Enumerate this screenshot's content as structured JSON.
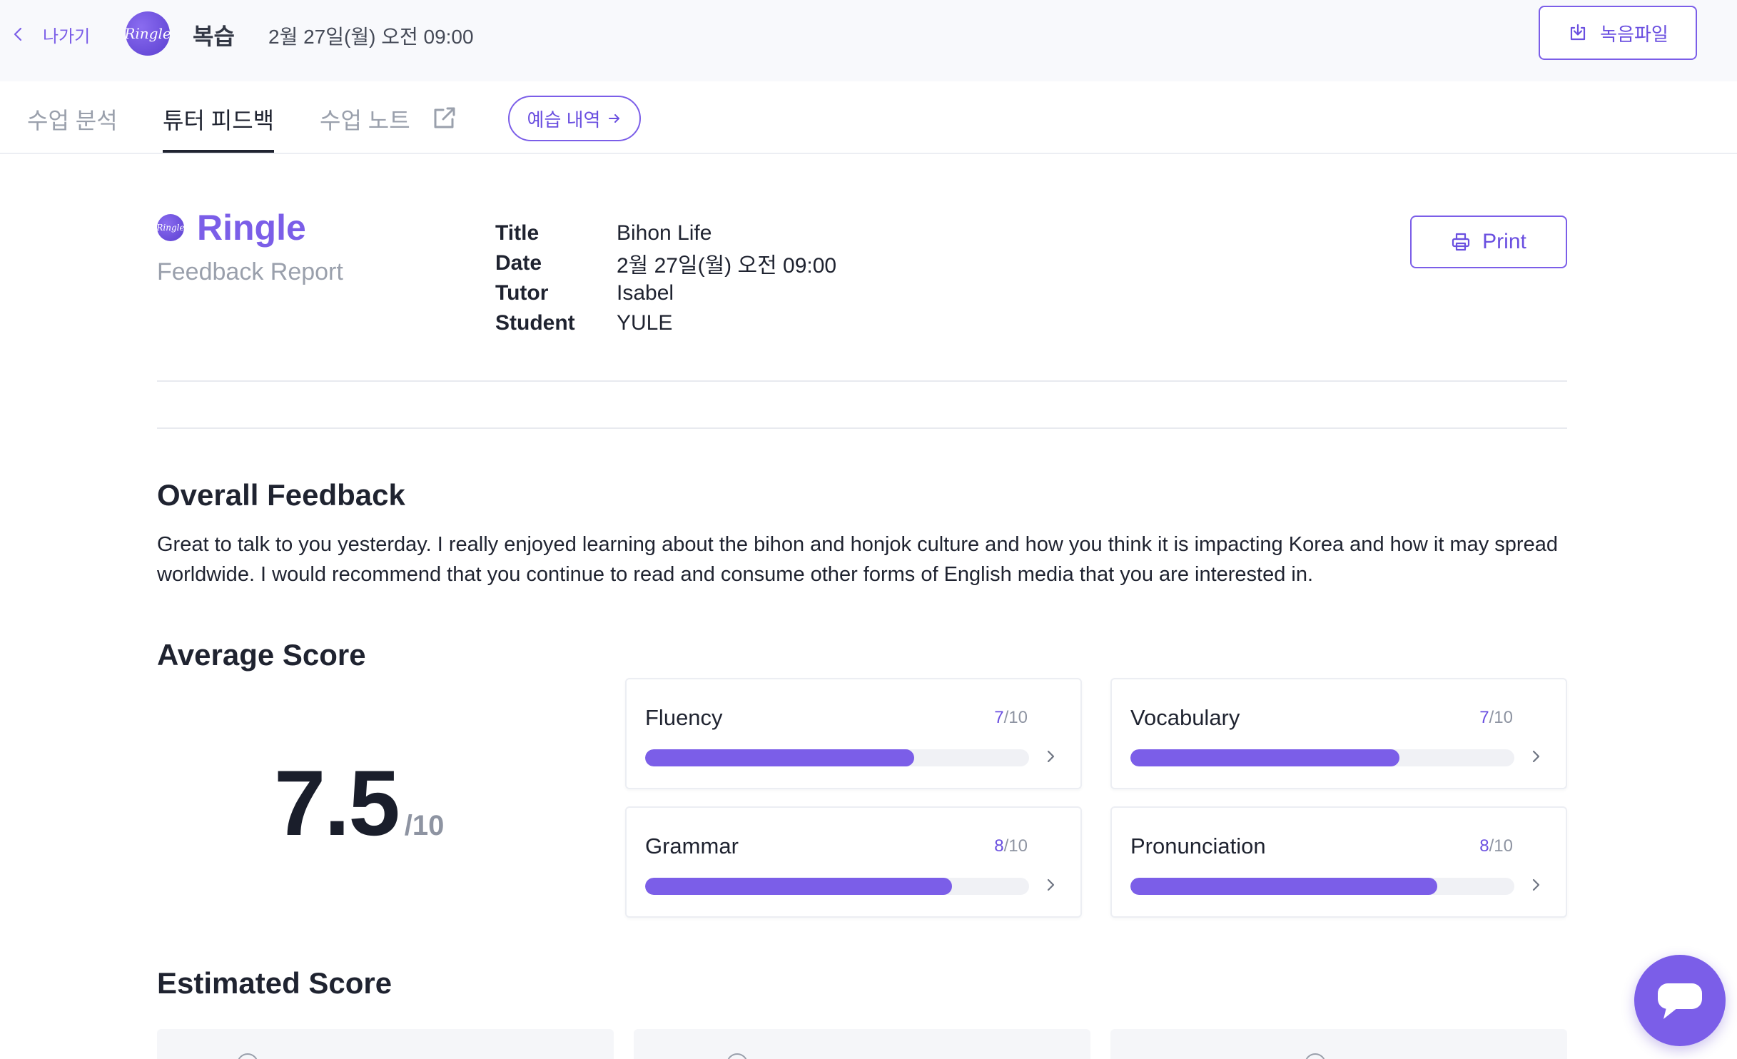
{
  "header": {
    "back_label": "나가기",
    "logo_text": "Ringle",
    "title": "복습",
    "date": "2월 27일(월) 오전 09:00",
    "record_button": "녹음파일"
  },
  "tabs": [
    {
      "label": "수업 분석",
      "active": false
    },
    {
      "label": "튜터 피드백",
      "active": true
    },
    {
      "label": "수업 노트",
      "active": false
    }
  ],
  "prep_button": "예습 내역",
  "report": {
    "brand": "Ringle",
    "subtitle": "Feedback Report",
    "print_label": "Print",
    "meta": [
      {
        "key": "Title",
        "value": "Bihon Life"
      },
      {
        "key": "Date",
        "value": "2월 27일(월) 오전 09:00"
      },
      {
        "key": "Tutor",
        "value": "Isabel"
      },
      {
        "key": "Student",
        "value": "YULE"
      }
    ]
  },
  "overall": {
    "heading": "Overall Feedback",
    "text": "Great to talk to you yesterday. I really enjoyed learning about the bihon and honjok culture and how you think it is impacting Korea and how it may spread worldwide. I would recommend that you continue to read and consume other forms of English media that you are interested in."
  },
  "average": {
    "heading": "Average Score",
    "score": "7.5",
    "denominator": "/10",
    "items": [
      {
        "label": "Fluency",
        "score": "7",
        "max": "/10",
        "fraction": 0.7
      },
      {
        "label": "Vocabulary",
        "score": "7",
        "max": "/10",
        "fraction": 0.7
      },
      {
        "label": "Grammar",
        "score": "8",
        "max": "/10",
        "fraction": 0.8
      },
      {
        "label": "Pronunciation",
        "score": "8",
        "max": "/10",
        "fraction": 0.8
      }
    ]
  },
  "estimated": {
    "heading": "Estimated Score"
  },
  "colors": {
    "accent": "#7b5ee8",
    "text": "#1f2330",
    "muted": "#9aa0ac"
  }
}
